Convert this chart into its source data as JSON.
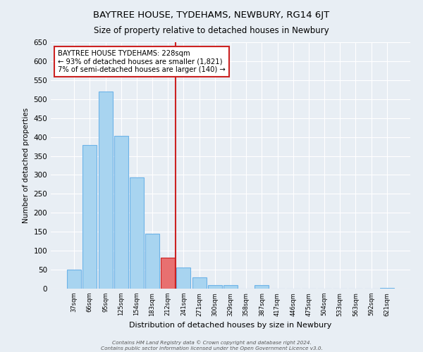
{
  "title": "BAYTREE HOUSE, TYDEHAMS, NEWBURY, RG14 6JT",
  "subtitle": "Size of property relative to detached houses in Newbury",
  "xlabel": "Distribution of detached houses by size in Newbury",
  "ylabel": "Number of detached properties",
  "categories": [
    "37sqm",
    "66sqm",
    "95sqm",
    "125sqm",
    "154sqm",
    "183sqm",
    "212sqm",
    "241sqm",
    "271sqm",
    "300sqm",
    "329sqm",
    "358sqm",
    "387sqm",
    "417sqm",
    "446sqm",
    "475sqm",
    "504sqm",
    "533sqm",
    "563sqm",
    "592sqm",
    "621sqm"
  ],
  "values": [
    50,
    378,
    520,
    403,
    293,
    144,
    81,
    55,
    29,
    10,
    10,
    0,
    10,
    0,
    0,
    0,
    0,
    0,
    0,
    0,
    2
  ],
  "bar_color": "#a8d4f0",
  "bar_edge_color": "#6db3e8",
  "highlight_bar_index": 6,
  "highlight_bar_color": "#e87070",
  "highlight_bar_edge_color": "#cc2222",
  "vline_color": "#cc2222",
  "annotation_title": "BAYTREE HOUSE TYDEHAMS: 228sqm",
  "annotation_line1": "← 93% of detached houses are smaller (1,821)",
  "annotation_line2": "7% of semi-detached houses are larger (140) →",
  "annotation_box_color": "#ffffff",
  "annotation_box_edge_color": "#cc2222",
  "ylim": [
    0,
    650
  ],
  "yticks": [
    0,
    50,
    100,
    150,
    200,
    250,
    300,
    350,
    400,
    450,
    500,
    550,
    600,
    650
  ],
  "bg_color": "#e8eef4",
  "grid_color": "#ffffff",
  "footer_line1": "Contains HM Land Registry data © Crown copyright and database right 2024.",
  "footer_line2": "Contains public sector information licensed under the Open Government Licence v3.0."
}
